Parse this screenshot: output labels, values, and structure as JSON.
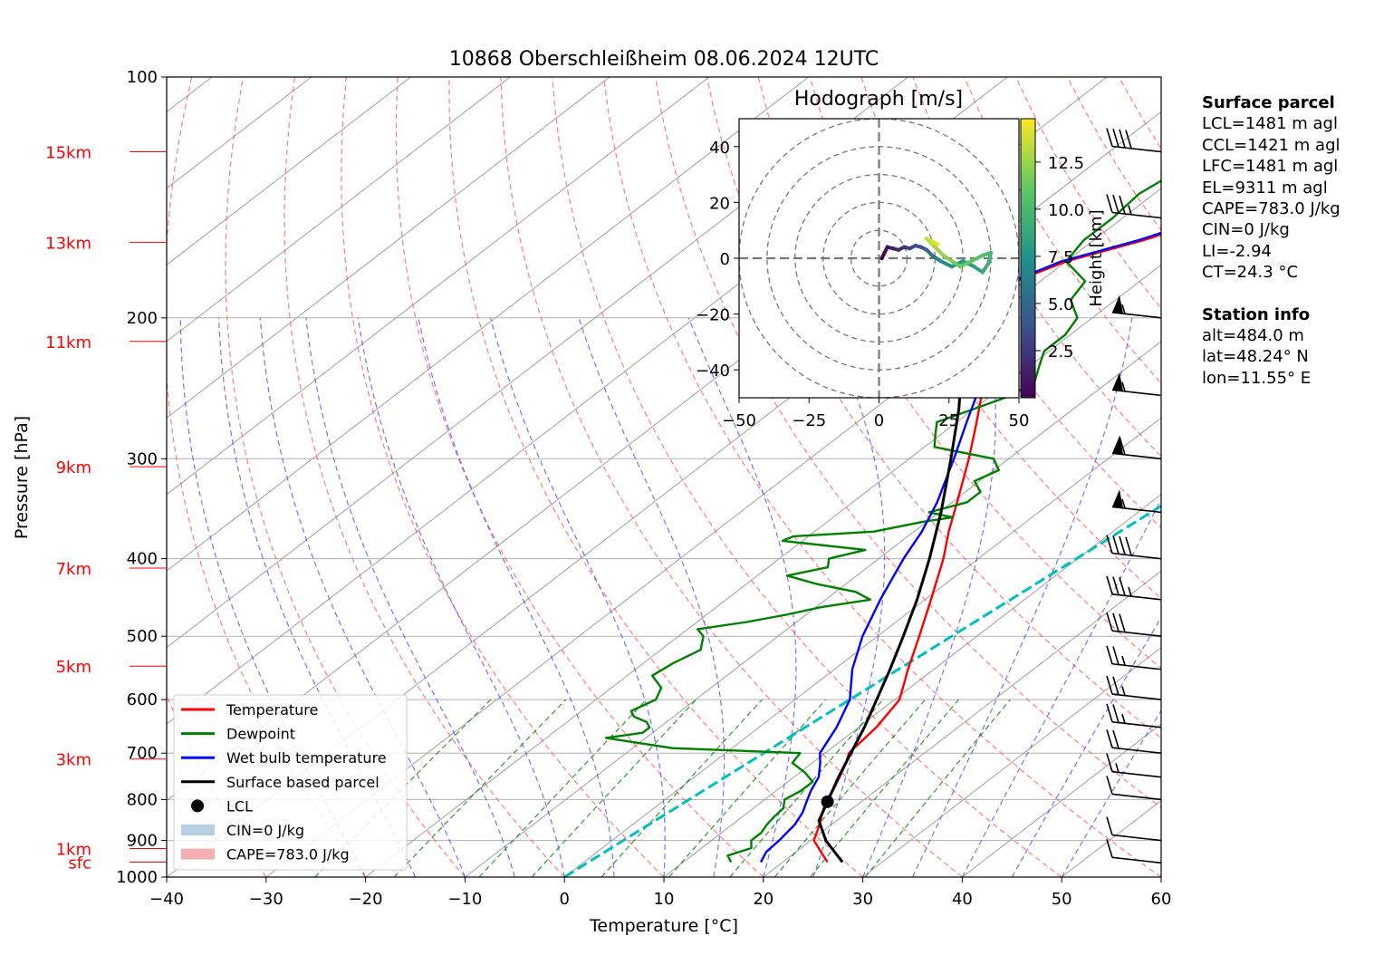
{
  "colors": {
    "temperature": "#ff0000",
    "dewpoint": "#008000",
    "wetbulb": "#0000ff",
    "parcel": "#000000",
    "height_labels": "#ff0000",
    "mixing_line": "#00bfbf",
    "cape_fill": "#f4b0b0",
    "cin_fill": "#b7cfe3"
  },
  "chart_data": [
    {
      "type": "line",
      "title": "10868 Oberschleißheim 08.06.2024 12UTC",
      "xlabel": "Temperature [°C]",
      "ylabel": "Pressure [hPa]",
      "xlim": [
        -40,
        60
      ],
      "ylim": [
        1000,
        100
      ],
      "y_scale": "log (inverted)",
      "x_ticks": [
        "−40",
        "−30",
        "−20",
        "−10",
        "0",
        "10",
        "20",
        "30",
        "40",
        "50",
        "60"
      ],
      "y_ticks": [
        "100",
        "200",
        "300",
        "400",
        "500",
        "600",
        "700",
        "800",
        "900",
        "1000"
      ],
      "height_labels": [
        {
          "label": "15km",
          "p": 124
        },
        {
          "label": "13km",
          "p": 161
        },
        {
          "label": "11km",
          "p": 214
        },
        {
          "label": "9km",
          "p": 307
        },
        {
          "label": "7km",
          "p": 411
        },
        {
          "label": "5km",
          "p": 545
        },
        {
          "label": "3km",
          "p": 712
        },
        {
          "label": "1km",
          "p": 921
        },
        {
          "label": "sfc",
          "p": 958
        }
      ],
      "grid": true,
      "legend_position": "lower-left",
      "legend": [
        "Temperature",
        "Dewpoint",
        "Wet bulb temperature",
        "Surface based parcel",
        "LCL",
        "CIN=0 J/kg",
        "CAPE=783.0 J/kg"
      ],
      "series": [
        {
          "name": "Temperature",
          "points": [
            [
              958,
              24.5
            ],
            [
              930,
              22.5
            ],
            [
              900,
              20.3
            ],
            [
              860,
              18.8
            ],
            [
              830,
              17.5
            ],
            [
              805,
              16.4
            ],
            [
              780,
              15.7
            ],
            [
              750,
              14.6
            ],
            [
              720,
              13.4
            ],
            [
              700,
              12.4
            ],
            [
              650,
              11.8
            ],
            [
              600,
              10.5
            ],
            [
              550,
              7.4
            ],
            [
              500,
              4.2
            ],
            [
              450,
              0.6
            ],
            [
              400,
              -3.5
            ],
            [
              370,
              -6.5
            ],
            [
              340,
              -9.5
            ],
            [
              300,
              -14.0
            ],
            [
              270,
              -18.0
            ],
            [
              250,
              -21.0
            ],
            [
              230,
              -24.5
            ],
            [
              210,
              -28.0
            ],
            [
              200,
              -30.5
            ],
            [
              180,
              -32.5
            ],
            [
              170,
              -30.0
            ],
            [
              160,
              -25.0
            ],
            [
              150,
              -21.0
            ],
            [
              140,
              -18.5
            ],
            [
              130,
              -16.0
            ],
            [
              124,
              -15.5
            ]
          ]
        },
        {
          "name": "Dewpoint",
          "points": [
            [
              958,
              14.8
            ],
            [
              940,
              13.6
            ],
            [
              920,
              15.0
            ],
            [
              900,
              14.0
            ],
            [
              880,
              14.0
            ],
            [
              860,
              13.5
            ],
            [
              840,
              13.2
            ],
            [
              820,
              13.0
            ],
            [
              800,
              12.0
            ],
            [
              780,
              12.5
            ],
            [
              760,
              12.5
            ],
            [
              740,
              10.5
            ],
            [
              720,
              8.0
            ],
            [
              700,
              7.5
            ],
            [
              690,
              -6.0
            ],
            [
              680,
              -10.0
            ],
            [
              670,
              -14.0
            ],
            [
              660,
              -11.0
            ],
            [
              650,
              -11.0
            ],
            [
              640,
              -12.0
            ],
            [
              630,
              -14.0
            ],
            [
              620,
              -15.0
            ],
            [
              600,
              -14.0
            ],
            [
              580,
              -15.0
            ],
            [
              560,
              -17.5
            ],
            [
              540,
              -17.0
            ],
            [
              520,
              -16.0
            ],
            [
              500,
              -17.5
            ],
            [
              490,
              -19.0
            ],
            [
              480,
              -15.0
            ],
            [
              470,
              -12.0
            ],
            [
              460,
              -9.5
            ],
            [
              450,
              -5.5
            ],
            [
              440,
              -8.0
            ],
            [
              430,
              -13.0
            ],
            [
              420,
              -17.0
            ],
            [
              410,
              -14.0
            ],
            [
              400,
              -15.0
            ],
            [
              390,
              -12.5
            ],
            [
              380,
              -22.0
            ],
            [
              375,
              -21.5
            ],
            [
              370,
              -14.0
            ],
            [
              360,
              -10.5
            ],
            [
              355,
              -8.0
            ],
            [
              350,
              -11.0
            ],
            [
              340,
              -8.5
            ],
            [
              330,
              -8.5
            ],
            [
              320,
              -10.5
            ],
            [
              310,
              -9.5
            ],
            [
              300,
              -11.5
            ],
            [
              290,
              -19.0
            ],
            [
              280,
              -20.5
            ],
            [
              270,
              -22.0
            ],
            [
              260,
              -20.0
            ],
            [
              250,
              -18.0
            ],
            [
              240,
              -17.5
            ],
            [
              230,
              -19.0
            ],
            [
              220,
              -20.5
            ],
            [
              210,
              -20.5
            ],
            [
              200,
              -21.5
            ],
            [
              190,
              -24.5
            ],
            [
              180,
              -25.5
            ],
            [
              170,
              -30.0
            ],
            [
              160,
              -31.0
            ],
            [
              150,
              -31.0
            ],
            [
              140,
              -31.5
            ],
            [
              130,
              -30.5
            ],
            [
              124,
              -30.0
            ]
          ]
        },
        {
          "name": "Wet bulb temperature",
          "points": [
            [
              958,
              17.8
            ],
            [
              930,
              17.0
            ],
            [
              900,
              16.8
            ],
            [
              860,
              16.3
            ],
            [
              830,
              15.5
            ],
            [
              805,
              14.5
            ],
            [
              780,
              13.5
            ],
            [
              750,
              12.5
            ],
            [
              720,
              10.8
            ],
            [
              700,
              9.5
            ],
            [
              650,
              7.8
            ],
            [
              600,
              5.5
            ],
            [
              550,
              1.8
            ],
            [
              500,
              -1.5
            ],
            [
              450,
              -4.5
            ],
            [
              400,
              -7.5
            ],
            [
              370,
              -9.2
            ],
            [
              340,
              -11.5
            ],
            [
              300,
              -15.5
            ],
            [
              270,
              -19.0
            ],
            [
              250,
              -21.5
            ],
            [
              230,
              -24.8
            ],
            [
              210,
              -28.3
            ],
            [
              200,
              -30.8
            ],
            [
              180,
              -32.8
            ],
            [
              170,
              -30.5
            ],
            [
              160,
              -25.5
            ],
            [
              150,
              -21.5
            ],
            [
              140,
              -19.0
            ],
            [
              130,
              -16.5
            ],
            [
              124,
              -16.0
            ]
          ]
        },
        {
          "name": "Surface based parcel",
          "points": [
            [
              958,
              26.0
            ],
            [
              900,
              21.5
            ],
            [
              850,
              18.2
            ],
            [
              805,
              16.6
            ],
            [
              750,
              14.5
            ],
            [
              700,
              12.6
            ],
            [
              650,
              10.6
            ],
            [
              600,
              8.2
            ],
            [
              550,
              5.6
            ],
            [
              500,
              2.6
            ],
            [
              450,
              -0.8
            ],
            [
              400,
              -4.9
            ],
            [
              350,
              -9.8
            ],
            [
              300,
              -15.8
            ],
            [
              260,
              -21.5
            ],
            [
              220,
              -28.7
            ],
            [
              200,
              -33.0
            ],
            [
              180,
              -38.0
            ],
            [
              160,
              -43.7
            ],
            [
              140,
              -50.5
            ],
            [
              124,
              -57.5
            ]
          ]
        }
      ],
      "lcl": {
        "label": "LCL",
        "p": 805,
        "t": 16.6
      },
      "cape_label": "CAPE=783.0 J/kg",
      "cin_label": "CIN=0 J/kg",
      "mixing_line": {
        "p_bottom": 1000,
        "t_bottom": 0.0,
        "p_top": 124,
        "t_top": 22.5
      },
      "wind_barbs": [
        {
          "p": 124,
          "speed_kt": 40
        },
        {
          "p": 150,
          "speed_kt": 35
        },
        {
          "p": 200,
          "speed_kt": 55
        },
        {
          "p": 250,
          "speed_kt": 55
        },
        {
          "p": 300,
          "speed_kt": 60
        },
        {
          "p": 350,
          "speed_kt": 55
        },
        {
          "p": 400,
          "speed_kt": 40
        },
        {
          "p": 450,
          "speed_kt": 35
        },
        {
          "p": 500,
          "speed_kt": 30
        },
        {
          "p": 550,
          "speed_kt": 25
        },
        {
          "p": 600,
          "speed_kt": 25
        },
        {
          "p": 650,
          "speed_kt": 25
        },
        {
          "p": 700,
          "speed_kt": 20
        },
        {
          "p": 750,
          "speed_kt": 15
        },
        {
          "p": 800,
          "speed_kt": 10
        },
        {
          "p": 900,
          "speed_kt": 10
        },
        {
          "p": 960,
          "speed_kt": 10
        }
      ]
    },
    {
      "type": "scatter",
      "title": "Hodograph [m/s]",
      "xlim": [
        -50,
        50
      ],
      "ylim": [
        -50,
        50
      ],
      "x_ticks": [
        "−50",
        "−25",
        "0",
        "25",
        "50"
      ],
      "y_ticks": [
        "40",
        "20",
        "0",
        "−20",
        "−40"
      ],
      "rings_ms": [
        10,
        20,
        30,
        40,
        50
      ],
      "colorbar": {
        "label": "Height [km]",
        "ticks": [
          "2.5",
          "5.0",
          "7.5",
          "10.0",
          "12.5"
        ],
        "range_km": [
          0,
          14.8
        ]
      },
      "points": [
        {
          "u": 1.0,
          "v": 0.0,
          "h": 0.0
        },
        {
          "u": 2.0,
          "v": 2.0,
          "h": 0.5
        },
        {
          "u": 3.0,
          "v": 4.0,
          "h": 1.0
        },
        {
          "u": 5.0,
          "v": 3.5,
          "h": 1.5
        },
        {
          "u": 7.0,
          "v": 3.0,
          "h": 2.0
        },
        {
          "u": 9.0,
          "v": 4.0,
          "h": 2.5
        },
        {
          "u": 11.0,
          "v": 3.5,
          "h": 3.0
        },
        {
          "u": 13.0,
          "v": 4.5,
          "h": 3.5
        },
        {
          "u": 15.0,
          "v": 4.0,
          "h": 4.0
        },
        {
          "u": 17.0,
          "v": 3.0,
          "h": 5.0
        },
        {
          "u": 19.0,
          "v": 1.0,
          "h": 6.0
        },
        {
          "u": 22.0,
          "v": -1.0,
          "h": 7.0
        },
        {
          "u": 26.0,
          "v": -3.0,
          "h": 7.5
        },
        {
          "u": 30.0,
          "v": -1.0,
          "h": 8.0
        },
        {
          "u": 34.0,
          "v": -3.0,
          "h": 8.5
        },
        {
          "u": 37.0,
          "v": -5.0,
          "h": 9.0
        },
        {
          "u": 39.0,
          "v": -2.0,
          "h": 9.5
        },
        {
          "u": 40.0,
          "v": 2.0,
          "h": 10.0
        },
        {
          "u": 37.0,
          "v": 1.0,
          "h": 10.5
        },
        {
          "u": 33.0,
          "v": -1.0,
          "h": 11.0
        },
        {
          "u": 29.0,
          "v": -3.0,
          "h": 11.5
        },
        {
          "u": 26.0,
          "v": -1.0,
          "h": 12.0
        },
        {
          "u": 23.0,
          "v": 1.0,
          "h": 12.5
        },
        {
          "u": 20.0,
          "v": 4.0,
          "h": 13.0
        },
        {
          "u": 17.0,
          "v": 7.0,
          "h": 13.5
        },
        {
          "u": 19.0,
          "v": 6.0,
          "h": 14.0
        },
        {
          "u": 21.0,
          "v": 5.0,
          "h": 14.5
        }
      ]
    }
  ],
  "surface_parcel": {
    "title": "Surface parcel",
    "lines": [
      "LCL=1481 m agl",
      "CCL=1421 m agl",
      "LFC=1481 m agl",
      "EL=9311 m agl",
      "CAPE=783.0 J/kg",
      "CIN=0 J/kg",
      "LI=-2.94",
      "CT=24.3 °C"
    ]
  },
  "station_info": {
    "title": "Station info",
    "lines": [
      "alt=484.0 m",
      "lat=48.24° N",
      "lon=11.55° E"
    ]
  }
}
